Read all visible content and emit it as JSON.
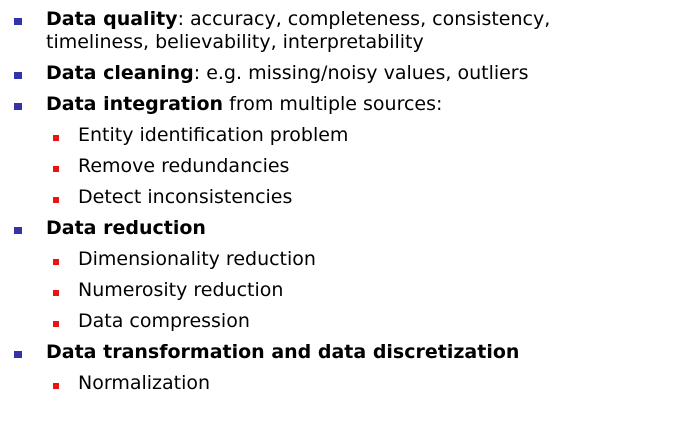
{
  "colors": {
    "primary_bullet": "#3333aa",
    "secondary_bullet": "#ee1111"
  },
  "bullets": [
    {
      "lead": "Data quality",
      "rest": ": accuracy, completeness, consistency, timeliness, believability, interpretability"
    },
    {
      "lead": "Data cleaning",
      "rest": ": e.g. missing/noisy values, outliers"
    },
    {
      "lead": "Data integration",
      "rest": " from multiple sources:",
      "sub": [
        "Entity identification problem",
        "Remove redundancies",
        "Detect inconsistencies"
      ]
    },
    {
      "lead": "Data reduction",
      "rest": "",
      "sub": [
        "Dimensionality reduction",
        "Numerosity reduction",
        "Data compression"
      ]
    },
    {
      "lead": "Data transformation and data discretization",
      "rest": "",
      "sub": [
        "Normalization"
      ]
    }
  ]
}
